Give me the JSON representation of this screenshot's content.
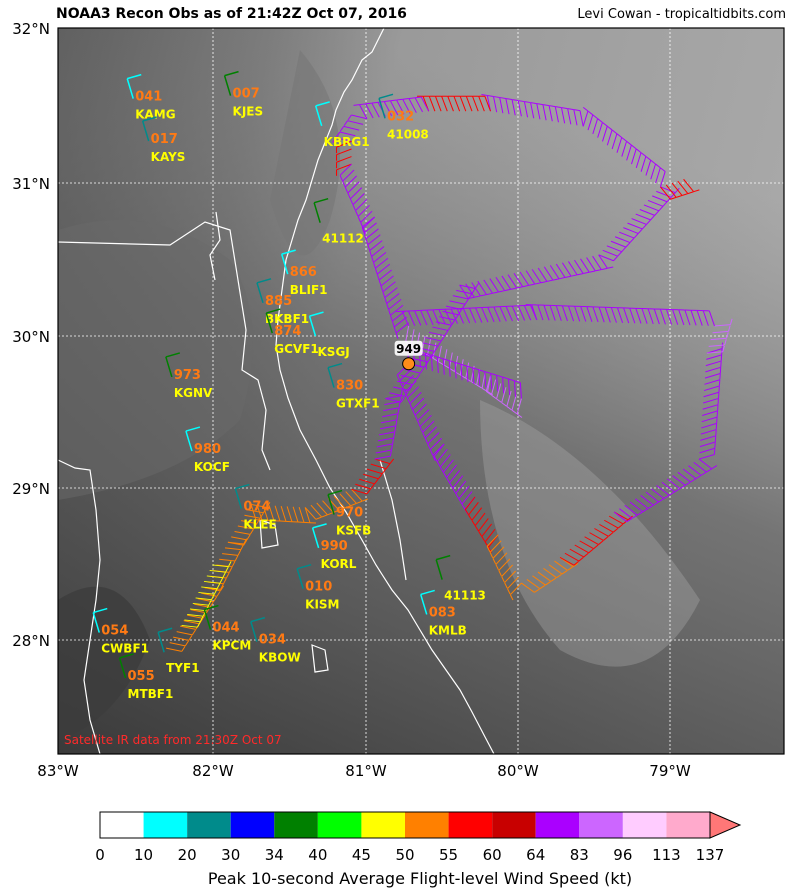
{
  "header": {
    "title": "NOAA3 Recon Obs as of 21:42Z Oct 07, 2016",
    "credit": "Levi Cowan - tropicaltidbits.com"
  },
  "map": {
    "lon_range": [
      -83.0,
      -78.3
    ],
    "lat_range": [
      27.25,
      32.05
    ],
    "x_ticks": [
      "83°W",
      "82°W",
      "81°W",
      "80°W",
      "79°W"
    ],
    "y_ticks": [
      "32°N",
      "31°N",
      "30°N",
      "29°N",
      "28°N"
    ],
    "footnote": "Satellite IR data from 21:30Z Oct 07",
    "storm_center": {
      "lon": -80.73,
      "lat": 29.83,
      "pressure_label": "949"
    }
  },
  "stations": [
    {
      "name": "KAMG",
      "value": "041",
      "lon": -82.5,
      "lat": 31.53
    },
    {
      "name": "KAYS",
      "value": "017",
      "lon": -82.4,
      "lat": 31.25
    },
    {
      "name": "KJES",
      "value": "007",
      "lon": -81.87,
      "lat": 31.55
    },
    {
      "name": "KBRG1",
      "value": "",
      "lon": -81.28,
      "lat": 31.35
    },
    {
      "name": "41008",
      "value": "032",
      "lon": -80.87,
      "lat": 31.4
    },
    {
      "name": "41112",
      "value": "",
      "lon": -81.29,
      "lat": 30.71
    },
    {
      "name": "BLIF1",
      "value": "866",
      "lon": -81.5,
      "lat": 30.37
    },
    {
      "name": "BKBF1",
      "value": "885",
      "lon": -81.66,
      "lat": 30.18
    },
    {
      "name": "GCVF1",
      "value": "874",
      "lon": -81.6,
      "lat": 29.98
    },
    {
      "name": "KSGJ",
      "value": "",
      "lon": -81.32,
      "lat": 29.96
    },
    {
      "name": "GTXF1",
      "value": "830",
      "lon": -81.2,
      "lat": 29.62
    },
    {
      "name": "KGNV",
      "value": "973",
      "lon": -82.25,
      "lat": 29.69
    },
    {
      "name": "KOCF",
      "value": "980",
      "lon": -82.12,
      "lat": 29.2
    },
    {
      "name": "KLEE",
      "value": "074",
      "lon": -81.8,
      "lat": 28.82
    },
    {
      "name": "KSFB",
      "value": "970",
      "lon": -81.2,
      "lat": 28.78
    },
    {
      "name": "KORL",
      "value": "990",
      "lon": -81.3,
      "lat": 28.56
    },
    {
      "name": "KISM",
      "value": "010",
      "lon": -81.4,
      "lat": 28.29
    },
    {
      "name": "41113",
      "value": "",
      "lon": -80.5,
      "lat": 28.35
    },
    {
      "name": "KMLB",
      "value": "083",
      "lon": -80.6,
      "lat": 28.12
    },
    {
      "name": "KBOW",
      "value": "034",
      "lon": -81.7,
      "lat": 27.94
    },
    {
      "name": "KPCM",
      "value": "044",
      "lon": -82.0,
      "lat": 28.02
    },
    {
      "name": "CWBF1",
      "value": "054",
      "lon": -82.72,
      "lat": 28.0
    },
    {
      "name": "TYF1",
      "value": "",
      "lon": -82.3,
      "lat": 27.87
    },
    {
      "name": "MTBF1",
      "value": "055",
      "lon": -82.55,
      "lat": 27.7
    }
  ],
  "colorbar": {
    "title": "Peak 10-second Average Flight-level Wind Speed (kt)",
    "boundaries": [
      "0",
      "10",
      "20",
      "30",
      "34",
      "40",
      "45",
      "50",
      "55",
      "60",
      "64",
      "83",
      "96",
      "113",
      "137"
    ],
    "colors": [
      "#ffffff",
      "#00ffff",
      "#008b8b",
      "#0000ff",
      "#008000",
      "#00ff00",
      "#ffff00",
      "#ff8000",
      "#ff0000",
      "#c80000",
      "#aa00ff",
      "#cc66ff",
      "#ffccff",
      "#ffaacc",
      "#ff7777"
    ]
  },
  "flight_track": {
    "legs": [
      {
        "color": "#ff8000",
        "points": [
          [
            -82.3,
            27.95
          ],
          [
            -82.05,
            28.35
          ],
          [
            -81.9,
            28.65
          ],
          [
            -81.75,
            28.9
          ]
        ]
      },
      {
        "color": "#ffff00",
        "points": [
          [
            -82.2,
            28.1
          ],
          [
            -82.0,
            28.5
          ]
        ]
      },
      {
        "color": "#ff8000",
        "points": [
          [
            -81.75,
            28.9
          ],
          [
            -81.4,
            28.88
          ],
          [
            -81.1,
            29.0
          ]
        ]
      },
      {
        "color": "#ff0000",
        "points": [
          [
            -81.1,
            29.0
          ],
          [
            -80.95,
            29.2
          ]
        ]
      },
      {
        "color": "#aa00ff",
        "points": [
          [
            -80.95,
            29.2
          ],
          [
            -80.88,
            29.6
          ],
          [
            -80.73,
            29.83
          ]
        ]
      },
      {
        "color": "#aa00ff",
        "points": [
          [
            -80.73,
            29.83
          ],
          [
            -80.5,
            29.3
          ],
          [
            -80.3,
            28.95
          ]
        ]
      },
      {
        "color": "#ff0000",
        "points": [
          [
            -80.3,
            28.95
          ],
          [
            -80.15,
            28.7
          ]
        ]
      },
      {
        "color": "#ff8000",
        "points": [
          [
            -80.15,
            28.7
          ],
          [
            -80.0,
            28.38
          ]
        ]
      },
      {
        "color": "#ff8000",
        "points": [
          [
            -80.0,
            28.38
          ],
          [
            -79.75,
            28.55
          ]
        ]
      },
      {
        "color": "#ff0000",
        "points": [
          [
            -79.75,
            28.55
          ],
          [
            -79.4,
            28.85
          ]
        ]
      },
      {
        "color": "#aa00ff",
        "points": [
          [
            -79.4,
            28.85
          ],
          [
            -78.85,
            29.2
          ],
          [
            -78.8,
            29.9
          ]
        ]
      },
      {
        "color": "#cc66ff",
        "points": [
          [
            -78.8,
            29.9
          ],
          [
            -78.75,
            30.08
          ]
        ]
      },
      {
        "color": "#aa00ff",
        "points": [
          [
            -78.75,
            30.08
          ],
          [
            -79.9,
            30.12
          ],
          [
            -80.73,
            30.08
          ]
        ]
      },
      {
        "color": "#cc66ff",
        "points": [
          [
            -80.73,
            30.08
          ],
          [
            -80.2,
            29.75
          ],
          [
            -80.0,
            29.6
          ]
        ]
      },
      {
        "color": "#aa00ff",
        "points": [
          [
            -80.0,
            29.6
          ],
          [
            -80.73,
            29.83
          ]
        ]
      },
      {
        "color": "#aa00ff",
        "points": [
          [
            -80.73,
            29.83
          ],
          [
            -80.4,
            30.35
          ],
          [
            -79.5,
            30.55
          ],
          [
            -79.1,
            31.0
          ]
        ]
      },
      {
        "color": "#ff0000",
        "points": [
          [
            -79.1,
            31.0
          ],
          [
            -78.95,
            31.05
          ]
        ]
      },
      {
        "color": "#aa00ff",
        "points": [
          [
            -79.1,
            31.0
          ],
          [
            -79.6,
            31.4
          ],
          [
            -80.2,
            31.5
          ]
        ]
      },
      {
        "color": "#ff0000",
        "points": [
          [
            -80.2,
            31.5
          ],
          [
            -80.6,
            31.5
          ]
        ]
      },
      {
        "color": "#aa00ff",
        "points": [
          [
            -80.6,
            31.5
          ],
          [
            -81.0,
            31.45
          ],
          [
            -81.1,
            31.3
          ]
        ]
      },
      {
        "color": "#ff0000",
        "points": [
          [
            -81.1,
            31.3
          ],
          [
            -81.1,
            31.15
          ]
        ]
      },
      {
        "color": "#aa00ff",
        "points": [
          [
            -81.1,
            31.15
          ],
          [
            -80.95,
            30.8
          ],
          [
            -80.73,
            30.1
          ]
        ]
      }
    ]
  }
}
